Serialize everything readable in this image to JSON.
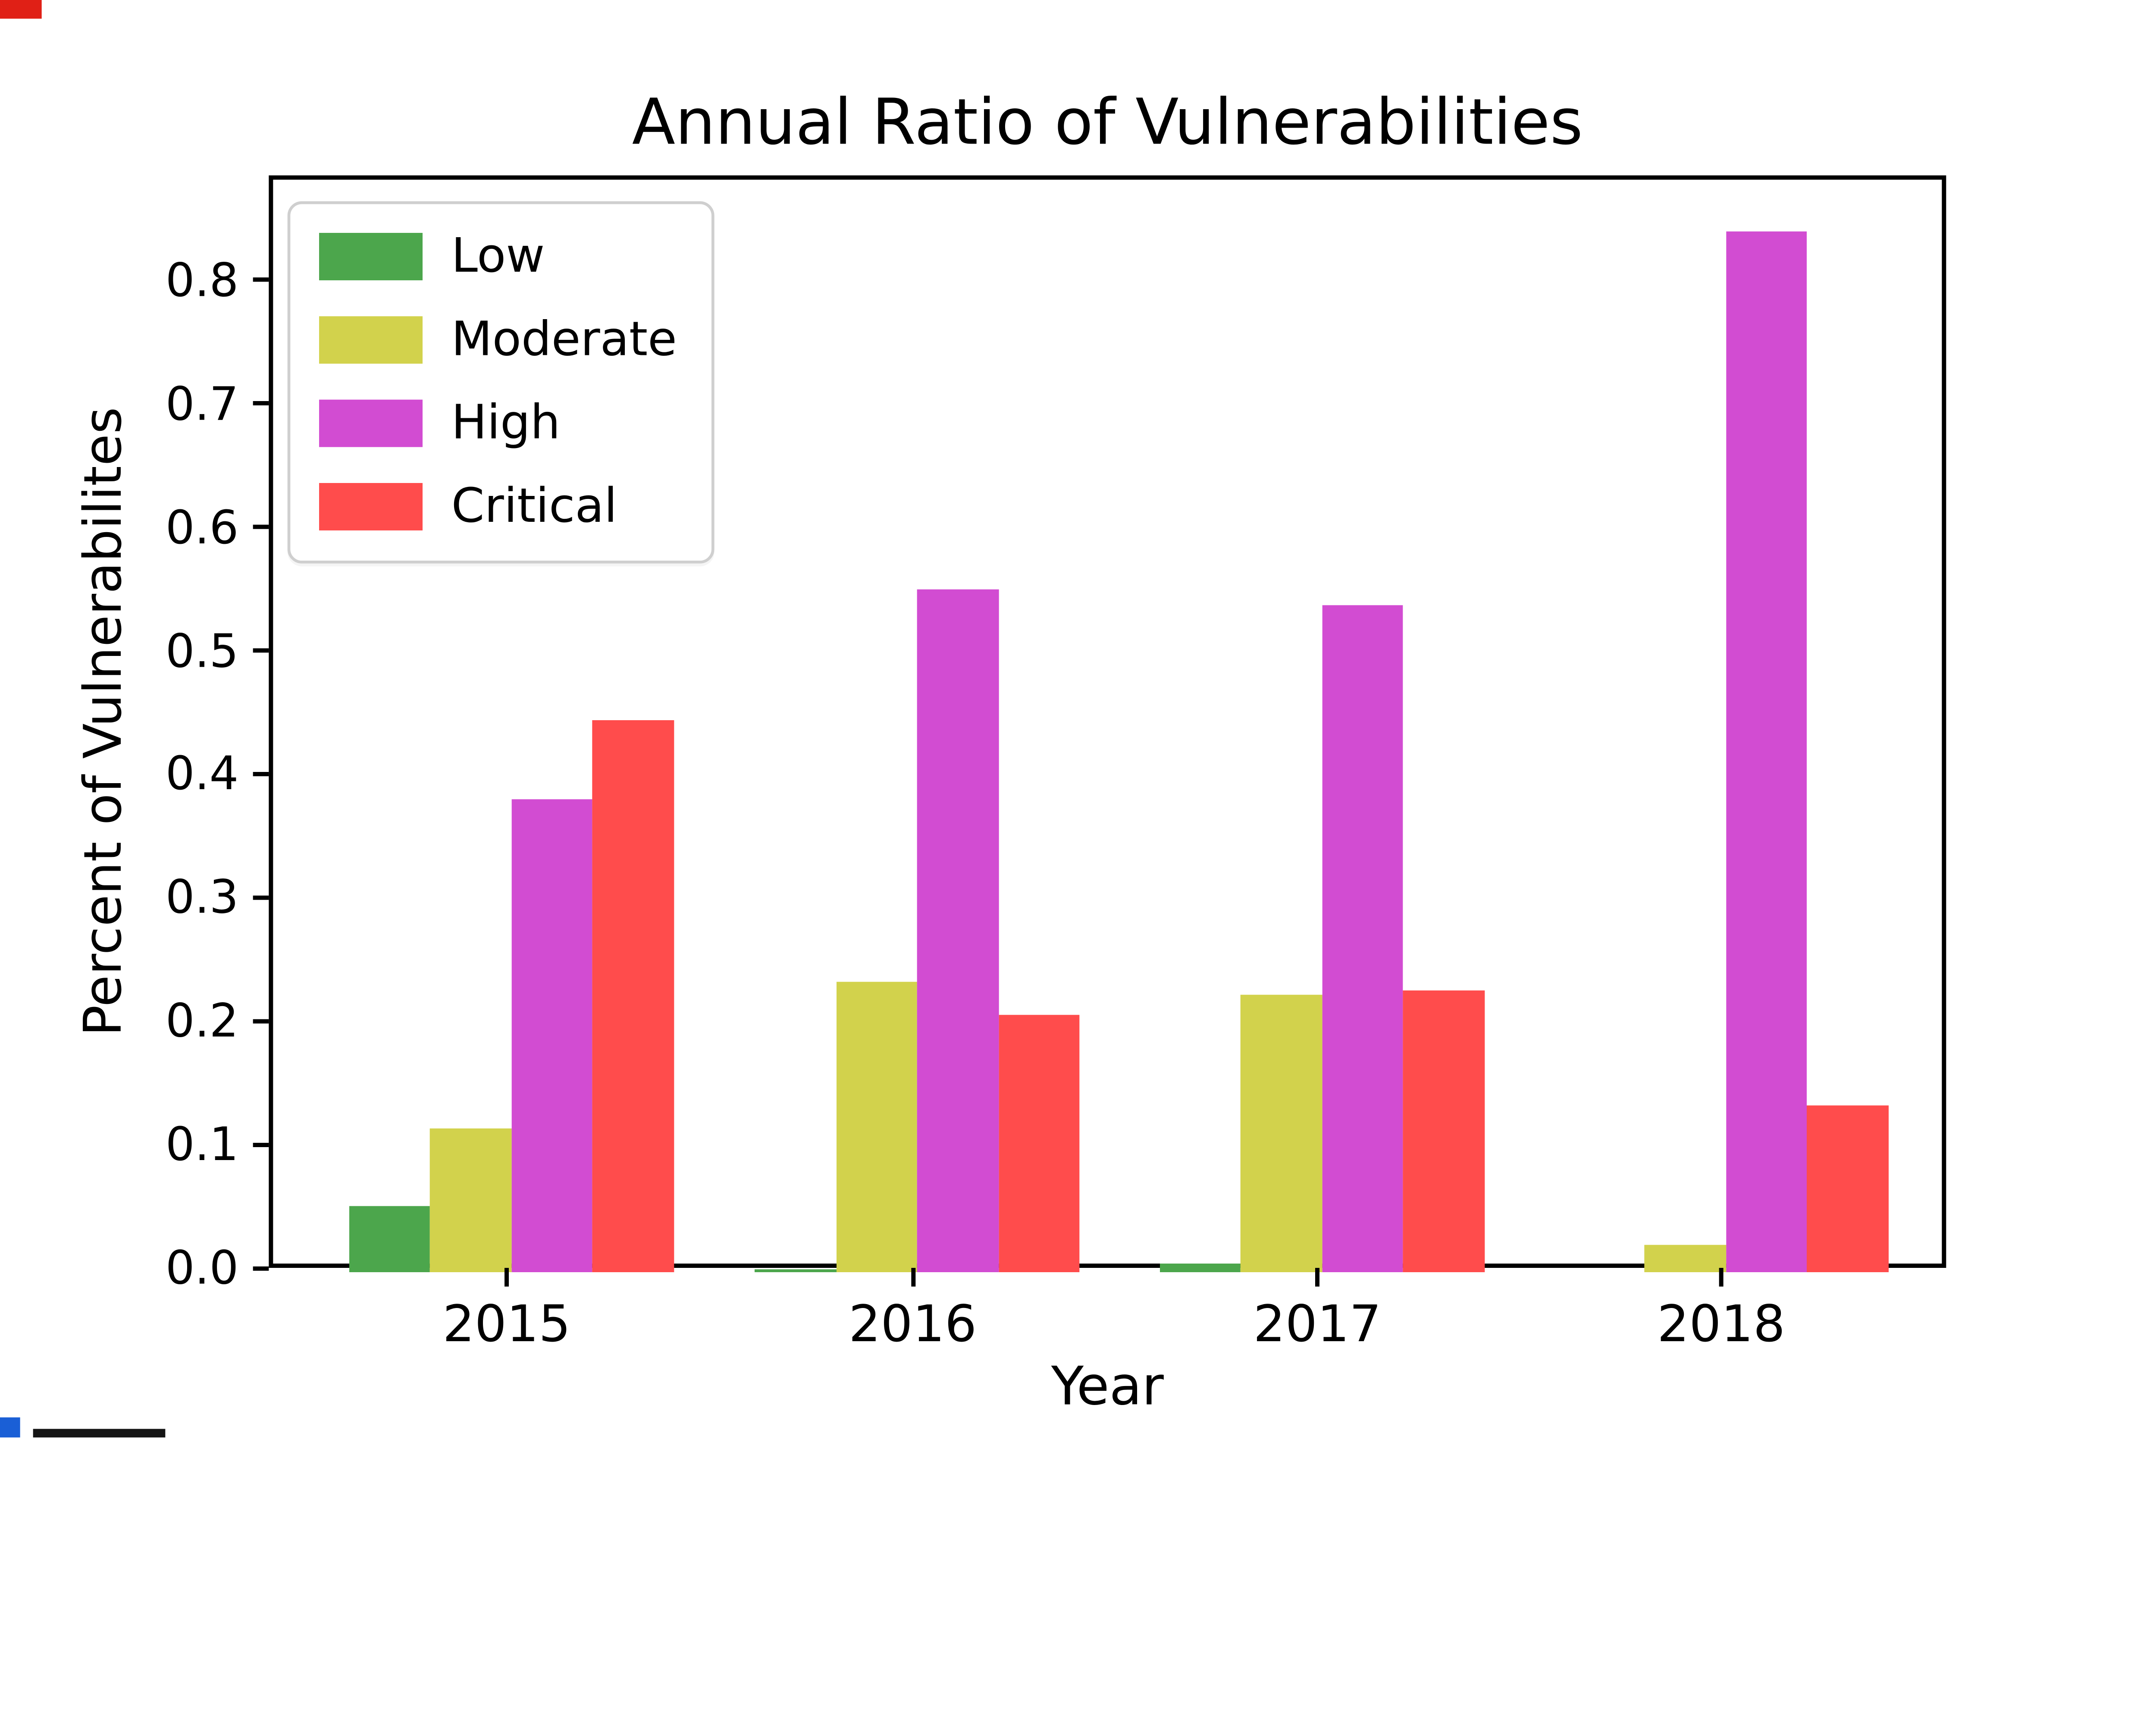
{
  "chart_data": {
    "type": "bar",
    "title": "Annual Ratio of Vulnerabilities",
    "xlabel": "Year",
    "ylabel": "Percent of Vulnerabilites",
    "categories": [
      "2015",
      "2016",
      "2017",
      "2018"
    ],
    "series": [
      {
        "name": "Low",
        "color": "#4CA64C",
        "values": [
          0.053,
          0.002,
          0.007,
          0.0
        ]
      },
      {
        "name": "Moderate",
        "color": "#D2D24C",
        "values": [
          0.117,
          0.235,
          0.225,
          0.022
        ]
      },
      {
        "name": "High",
        "color": "#D24CD2",
        "values": [
          0.383,
          0.553,
          0.54,
          0.843
        ]
      },
      {
        "name": "Critical",
        "color": "#FF4C4C",
        "values": [
          0.447,
          0.209,
          0.228,
          0.135
        ]
      }
    ],
    "ylim": [
      0,
      0.885
    ],
    "yticks": [
      "0.0",
      "0.1",
      "0.2",
      "0.3",
      "0.4",
      "0.5",
      "0.6",
      "0.7",
      "0.8"
    ],
    "legend": {
      "position": "upper left",
      "entries": [
        "Low",
        "Moderate",
        "High",
        "Critical"
      ]
    },
    "grid": false,
    "bar_width_category_fraction": 0.2
  },
  "artifacts": [
    {
      "name": "screen-fragment-red-top-left",
      "color": "#E02016"
    },
    {
      "name": "screen-fragment-blue-bottom-left",
      "color": "#1A5FD6"
    },
    {
      "name": "screen-fragment-black-bottom-strip",
      "color": "#151515"
    }
  ]
}
